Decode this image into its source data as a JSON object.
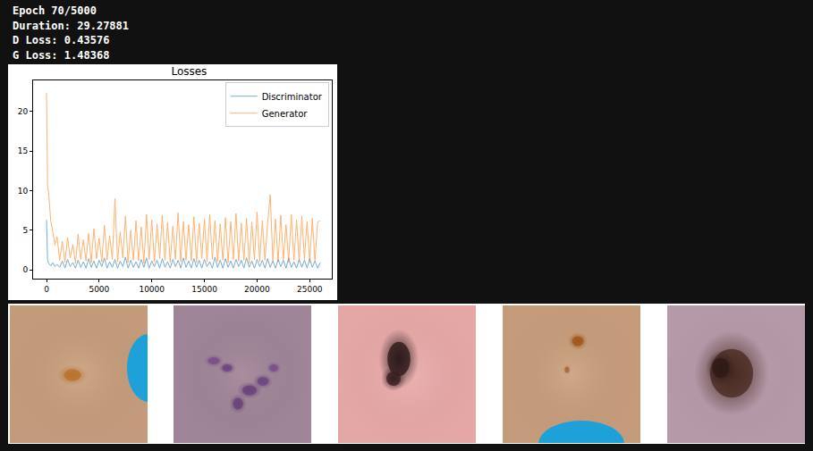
{
  "header": {
    "lines": [
      "Epoch 70/5000",
      "Duration: 29.27881",
      "D Loss: 0.43576",
      "G Loss: 1.48368"
    ]
  },
  "chart_data": {
    "type": "line",
    "title": "Losses",
    "x": [
      0,
      100,
      200,
      400,
      600,
      800,
      1000,
      1250,
      1500,
      1750,
      2000,
      2250,
      2500,
      2750,
      3000,
      3250,
      3500,
      3750,
      4000,
      4250,
      4500,
      4750,
      5000,
      5250,
      5500,
      5750,
      6000,
      6250,
      6500,
      6750,
      7000,
      7250,
      7500,
      7750,
      8000,
      8250,
      8500,
      8750,
      9000,
      9250,
      9500,
      9750,
      10000,
      10250,
      10500,
      10750,
      11000,
      11250,
      11500,
      11750,
      12000,
      12250,
      12500,
      12750,
      13000,
      13250,
      13500,
      13750,
      14000,
      14250,
      14500,
      14750,
      15000,
      15250,
      15500,
      15750,
      16000,
      16250,
      16500,
      16750,
      17000,
      17250,
      17500,
      17750,
      18000,
      18250,
      18500,
      18750,
      19000,
      19250,
      19500,
      19750,
      20000,
      20250,
      20500,
      20750,
      21000,
      21250,
      21500,
      21750,
      22000,
      22250,
      22500,
      22750,
      23000,
      23250,
      23500,
      23750,
      24000,
      24250,
      24500,
      24750,
      25000,
      25250,
      25500,
      25750,
      26000
    ],
    "series": [
      {
        "name": "Discriminator",
        "color": "#1f77b4",
        "values": [
          6.3,
          1.2,
          0.8,
          0.5,
          0.9,
          0.4,
          0.7,
          0.3,
          1.1,
          0.2,
          1.3,
          0.4,
          0.9,
          0.2,
          1.2,
          0.3,
          1.0,
          0.2,
          1.4,
          0.3,
          1.1,
          0.2,
          1.2,
          0.4,
          1.5,
          0.2,
          1.0,
          0.3,
          1.3,
          0.2,
          1.1,
          0.4,
          1.6,
          0.2,
          1.2,
          0.3,
          1.0,
          0.2,
          1.3,
          0.3,
          1.5,
          0.2,
          1.1,
          0.4,
          1.2,
          0.2,
          1.4,
          0.3,
          1.0,
          0.2,
          1.3,
          0.4,
          1.2,
          0.2,
          1.5,
          0.3,
          1.1,
          0.2,
          1.4,
          0.3,
          1.2,
          0.2,
          1.3,
          0.4,
          1.0,
          0.2,
          1.6,
          0.3,
          1.2,
          0.2,
          1.4,
          0.3,
          1.1,
          0.2,
          1.3,
          0.4,
          1.2,
          0.2,
          1.5,
          0.3,
          1.1,
          0.2,
          1.3,
          0.4,
          1.2,
          0.2,
          1.4,
          0.3,
          1.1,
          0.2,
          1.3,
          0.4,
          1.2,
          0.2,
          1.5,
          0.3,
          1.0,
          0.2,
          1.3,
          0.3,
          1.2,
          0.2,
          1.4,
          0.3,
          1.1,
          0.2,
          0.9
        ]
      },
      {
        "name": "Generator",
        "color": "#ff7f0e",
        "values": [
          22.4,
          10.5,
          9.8,
          6.2,
          4.8,
          3.1,
          4.2,
          1.2,
          3.6,
          0.9,
          4.1,
          1.5,
          3.2,
          0.8,
          4.5,
          1.3,
          3.8,
          1.1,
          4.6,
          0.9,
          5.2,
          1.4,
          4.0,
          1.0,
          5.6,
          1.2,
          4.3,
          1.3,
          9.0,
          1.0,
          4.8,
          1.5,
          6.8,
          0.9,
          5.0,
          1.2,
          6.2,
          1.1,
          5.4,
          0.8,
          7.0,
          1.3,
          6.3,
          1.0,
          5.8,
          1.4,
          6.9,
          1.2,
          6.0,
          0.9,
          5.5,
          1.3,
          7.2,
          1.0,
          6.1,
          1.2,
          5.7,
          1.1,
          6.7,
          0.9,
          5.9,
          1.4,
          6.4,
          1.0,
          7.0,
          1.3,
          6.2,
          1.0,
          5.8,
          1.2,
          6.6,
          0.9,
          6.1,
          1.3,
          7.1,
          1.1,
          5.9,
          1.2,
          6.5,
          0.8,
          6.0,
          1.3,
          7.3,
          1.0,
          6.2,
          1.2,
          5.8,
          9.5,
          1.1,
          6.4,
          1.0,
          6.9,
          1.3,
          5.7,
          0.9,
          7.0,
          1.2,
          6.3,
          1.0,
          6.8,
          1.3,
          6.1,
          0.9,
          6.5,
          1.1,
          6.0,
          6.2
        ]
      }
    ],
    "xlim": [
      -1275,
      27100
    ],
    "ylim": [
      -1.13,
      23.95
    ],
    "xticks": [
      0,
      5000,
      10000,
      15000,
      20000,
      25000
    ],
    "yticks": [
      0,
      5,
      10,
      15,
      20
    ],
    "grid": false,
    "legend": "upper right"
  }
}
